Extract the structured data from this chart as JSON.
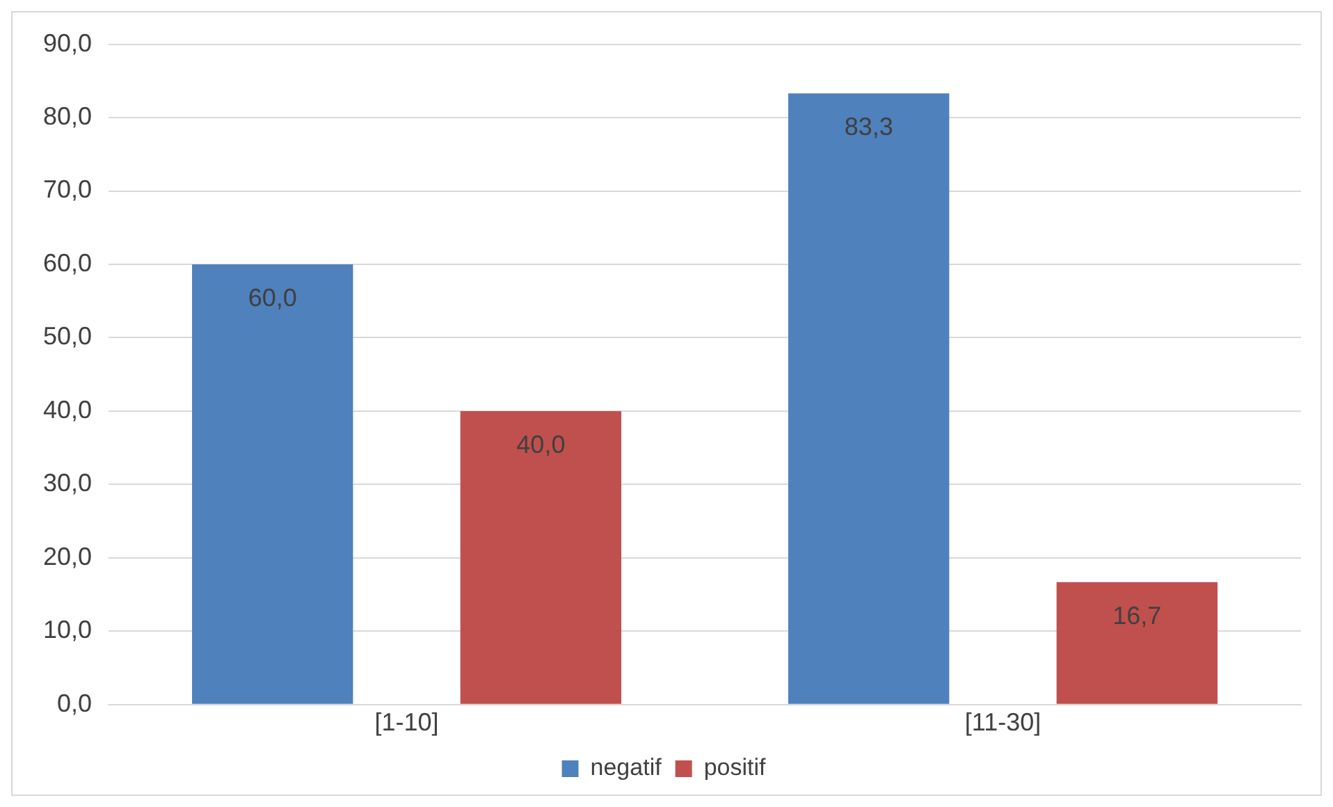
{
  "chart_data": {
    "type": "bar",
    "categories": [
      "[1-10]",
      "[11-30]"
    ],
    "series": [
      {
        "name": "negatif",
        "color": "#4f81bd",
        "values": [
          60.0,
          83.3
        ],
        "value_labels": [
          "60,0",
          "83,3"
        ]
      },
      {
        "name": "positif",
        "color": "#c0504d",
        "values": [
          40.0,
          16.7
        ],
        "value_labels": [
          "40,0",
          "16,7"
        ]
      }
    ],
    "ylim": [
      0,
      90
    ],
    "yticks": [
      {
        "value": 0,
        "label": "0,0"
      },
      {
        "value": 10,
        "label": "10,0"
      },
      {
        "value": 20,
        "label": "20,0"
      },
      {
        "value": 30,
        "label": "30,0"
      },
      {
        "value": 40,
        "label": "40,0"
      },
      {
        "value": 50,
        "label": "50,0"
      },
      {
        "value": 60,
        "label": "60,0"
      },
      {
        "value": 70,
        "label": "70,0"
      },
      {
        "value": 80,
        "label": "80,0"
      },
      {
        "value": 90,
        "label": "90,0"
      }
    ],
    "grid": "y",
    "legend": "bottom"
  }
}
